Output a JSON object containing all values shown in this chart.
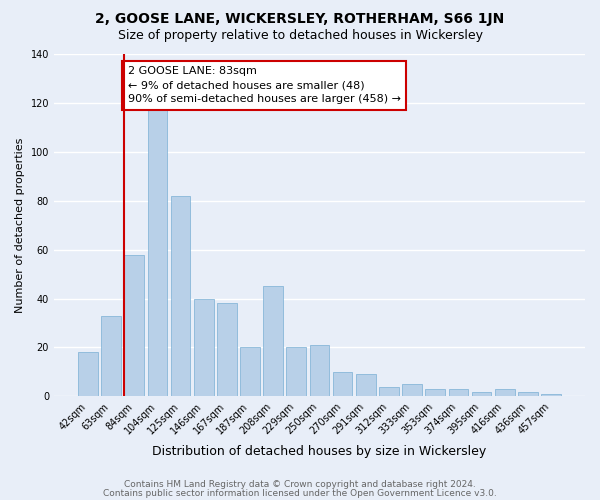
{
  "title": "2, GOOSE LANE, WICKERSLEY, ROTHERHAM, S66 1JN",
  "subtitle": "Size of property relative to detached houses in Wickersley",
  "xlabel": "Distribution of detached houses by size in Wickersley",
  "ylabel": "Number of detached properties",
  "categories": [
    "42sqm",
    "63sqm",
    "84sqm",
    "104sqm",
    "125sqm",
    "146sqm",
    "167sqm",
    "187sqm",
    "208sqm",
    "229sqm",
    "250sqm",
    "270sqm",
    "291sqm",
    "312sqm",
    "333sqm",
    "353sqm",
    "374sqm",
    "395sqm",
    "416sqm",
    "436sqm",
    "457sqm"
  ],
  "values": [
    18,
    33,
    58,
    118,
    82,
    40,
    38,
    20,
    45,
    20,
    21,
    10,
    9,
    4,
    5,
    3,
    3,
    2,
    3,
    2,
    1
  ],
  "bar_color": "#b8d0e8",
  "bar_edge_color": "#7aafd4",
  "highlight_bar_index": 2,
  "highlight_line_color": "#cc0000",
  "annotation_text": "2 GOOSE LANE: 83sqm\n← 9% of detached houses are smaller (48)\n90% of semi-detached houses are larger (458) →",
  "annotation_box_color": "#ffffff",
  "annotation_box_edge_color": "#cc0000",
  "ylim": [
    0,
    140
  ],
  "yticks": [
    0,
    20,
    40,
    60,
    80,
    100,
    120,
    140
  ],
  "footer_line1": "Contains HM Land Registry data © Crown copyright and database right 2024.",
  "footer_line2": "Contains public sector information licensed under the Open Government Licence v3.0.",
  "bg_color": "#e8eef8",
  "plot_bg_color": "#e8eef8",
  "grid_color": "#ffffff",
  "title_fontsize": 10,
  "subtitle_fontsize": 9,
  "xlabel_fontsize": 9,
  "ylabel_fontsize": 8,
  "tick_fontsize": 7,
  "annotation_fontsize": 8,
  "footer_fontsize": 6.5
}
